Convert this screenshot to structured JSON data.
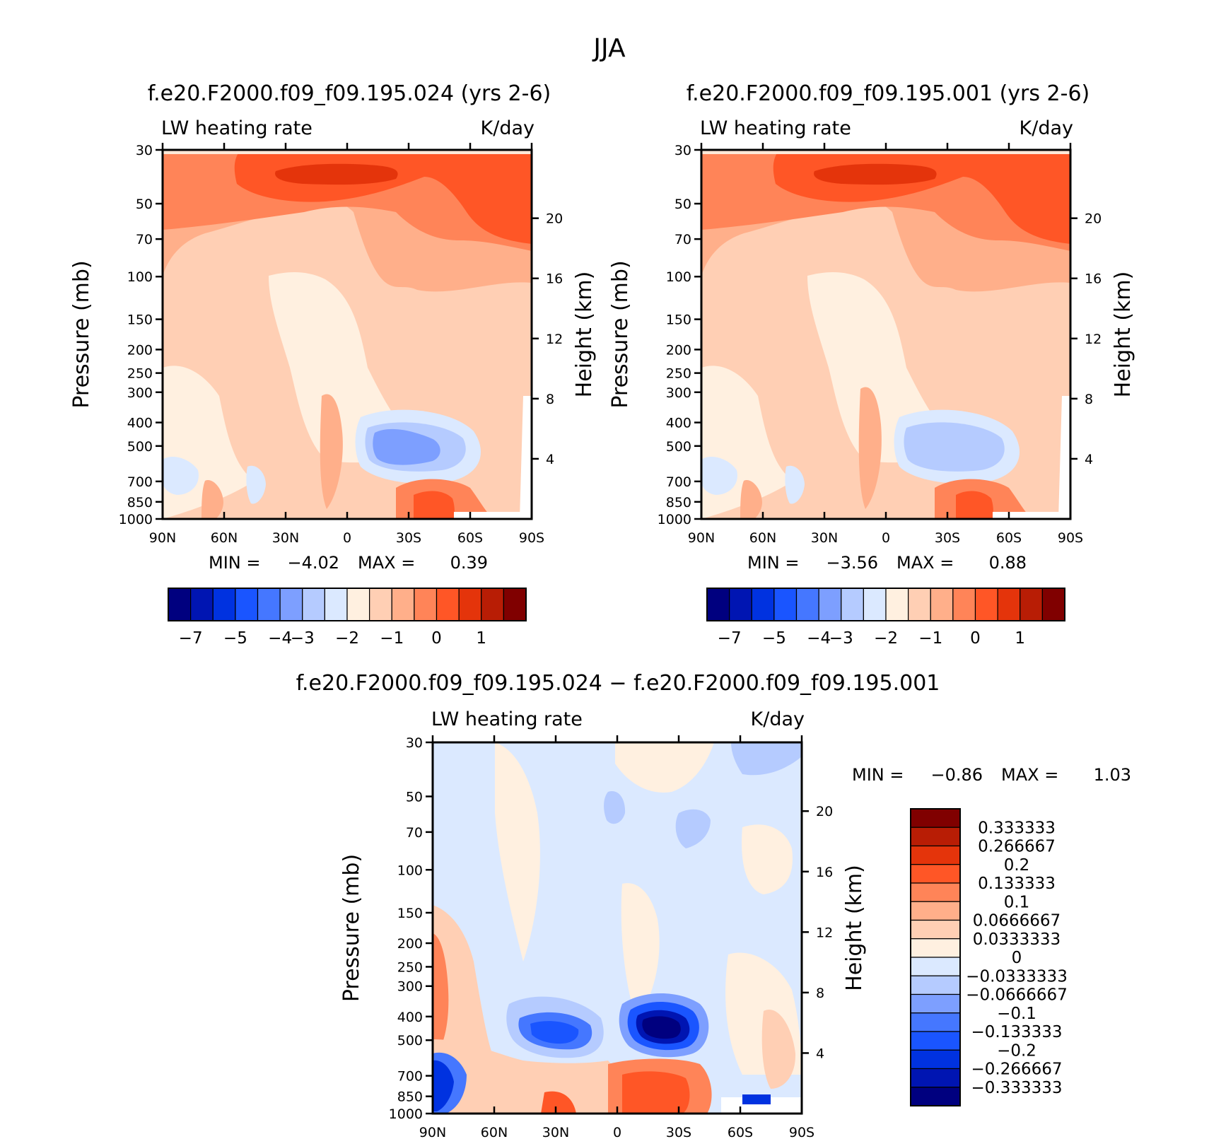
{
  "figure": {
    "title": "JJA"
  },
  "chart_data": [
    {
      "type": "heatmap",
      "title": "f.e20.F2000.f09_f09.195.024 (yrs 2-6)",
      "left_label": "LW heating rate",
      "right_label": "K/day",
      "ylabel": "Pressure (mb)",
      "ylabel_right": "Height (km)",
      "x_ticks": [
        "90N",
        "60N",
        "30N",
        "0",
        "30S",
        "60S",
        "90S"
      ],
      "y_ticks": [
        "30",
        "50",
        "70",
        "100",
        "150",
        "200",
        "250",
        "300",
        "400",
        "500",
        "700",
        "850",
        "1000"
      ],
      "y_ticks_right": [
        "20",
        "16",
        "12",
        "8",
        "4"
      ],
      "min_label": "MIN =",
      "min_value": "−4.02",
      "max_label": "MAX =",
      "max_value": "0.39",
      "colorbar_labels": [
        "−7",
        "−5",
        "−4",
        "−3",
        "−2",
        "−1",
        "0",
        "1"
      ],
      "colorbar_colors": [
        "#00007f",
        "#0015b2",
        "#0032e0",
        "#1a55ff",
        "#4577ff",
        "#7d9fff",
        "#b5cbff",
        "#dbe9ff",
        "#fff0e0",
        "#ffcfb4",
        "#ffaf8a",
        "#ff8458",
        "#ff5626",
        "#e4340b",
        "#b81d05",
        "#800000"
      ]
    },
    {
      "type": "heatmap",
      "title": "f.e20.F2000.f09_f09.195.001 (yrs 2-6)",
      "left_label": "LW heating rate",
      "right_label": "K/day",
      "ylabel": "Pressure (mb)",
      "ylabel_right": "Height (km)",
      "x_ticks": [
        "90N",
        "60N",
        "30N",
        "0",
        "30S",
        "60S",
        "90S"
      ],
      "y_ticks": [
        "30",
        "50",
        "70",
        "100",
        "150",
        "200",
        "250",
        "300",
        "400",
        "500",
        "700",
        "850",
        "1000"
      ],
      "y_ticks_right": [
        "20",
        "16",
        "12",
        "8",
        "4"
      ],
      "min_label": "MIN =",
      "min_value": "−3.56",
      "max_label": "MAX =",
      "max_value": "0.88",
      "colorbar_labels": [
        "−7",
        "−5",
        "−4",
        "−3",
        "−2",
        "−1",
        "0",
        "1"
      ],
      "colorbar_colors": [
        "#00007f",
        "#0015b2",
        "#0032e0",
        "#1a55ff",
        "#4577ff",
        "#7d9fff",
        "#b5cbff",
        "#dbe9ff",
        "#fff0e0",
        "#ffcfb4",
        "#ffaf8a",
        "#ff8458",
        "#ff5626",
        "#e4340b",
        "#b81d05",
        "#800000"
      ]
    },
    {
      "type": "heatmap",
      "title": "f.e20.F2000.f09_f09.195.024 − f.e20.F2000.f09_f09.195.001",
      "left_label": "LW heating rate",
      "right_label": "K/day",
      "ylabel": "Pressure (mb)",
      "ylabel_right": "Height (km)",
      "x_ticks": [
        "90N",
        "60N",
        "30N",
        "0",
        "30S",
        "60S",
        "90S"
      ],
      "y_ticks": [
        "30",
        "50",
        "70",
        "100",
        "150",
        "200",
        "250",
        "300",
        "400",
        "500",
        "700",
        "850",
        "1000"
      ],
      "y_ticks_right": [
        "20",
        "16",
        "12",
        "8",
        "4"
      ],
      "min_label": "MIN =",
      "min_value": "−0.86",
      "max_label": "MAX =",
      "max_value": "1.03",
      "colorbar_labels": [
        "0.333333",
        "0.266667",
        "0.2",
        "0.133333",
        "0.1",
        "0.0666667",
        "0.0333333",
        "0",
        "−0.0333333",
        "−0.0666667",
        "−0.1",
        "−0.133333",
        "−0.2",
        "−0.266667",
        "−0.333333"
      ],
      "colorbar_colors": [
        "#800000",
        "#b81d05",
        "#e4340b",
        "#ff5626",
        "#ff8458",
        "#ffaf8a",
        "#ffcfb4",
        "#fff0e0",
        "#dbe9ff",
        "#b5cbff",
        "#7d9fff",
        "#4577ff",
        "#1a55ff",
        "#0032e0",
        "#0015b2",
        "#00007f"
      ]
    }
  ]
}
